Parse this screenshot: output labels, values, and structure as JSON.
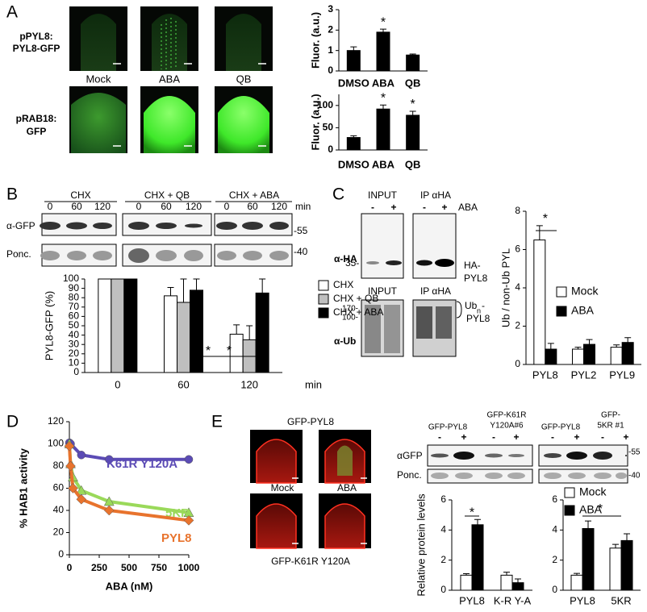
{
  "figure": {
    "panel_letters": [
      "A",
      "B",
      "C",
      "D",
      "E"
    ],
    "a": {
      "row_labels": [
        [
          "pPYL8:",
          "PYL8-GFP"
        ],
        [
          "pRAB18:",
          "GFP"
        ]
      ],
      "conditions": [
        "Mock",
        "ABA",
        "QB"
      ]
    },
    "b": {
      "groups": [
        "CHX",
        "CHX + QB",
        "CHX + ABA"
      ],
      "lanes": [
        "0",
        "60",
        "120",
        "0",
        "60",
        "120",
        "0",
        "60",
        "120"
      ],
      "unit": "min",
      "rows": [
        "α-GFP",
        "Ponc."
      ],
      "markers": [
        "-55",
        "-40"
      ]
    },
    "c": {
      "top_headers": [
        "INPUT",
        "IP αHA"
      ],
      "signs": [
        "-",
        "+",
        "-",
        "+"
      ],
      "treatment": "ABA",
      "antibody_ha": "α-HA",
      "marker_35": "35-",
      "ha_label": [
        "HA-",
        "PYL8"
      ],
      "bottom_headers": [
        "INPUT",
        "IP αHA"
      ],
      "markers_ub": [
        "170-",
        "100-"
      ],
      "ub_label": [
        "Ub",
        "n",
        "-",
        "PYL8"
      ],
      "antibody_ub": "α-Ub"
    },
    "e": {
      "image_top": "GFP-PYL8",
      "conditions": [
        "Mock",
        "ABA"
      ],
      "image_bottom": "GFP-K61R Y120A",
      "blot_headers": [
        [
          "GFP-PYL8"
        ],
        [
          "GFP-K61R",
          "Y120A#6"
        ],
        [
          "GFP-PYL8"
        ],
        [
          "GFP-",
          "5KR #1"
        ]
      ],
      "signs": [
        "-",
        "+",
        "-",
        "+",
        "-",
        "+",
        "-",
        "+"
      ],
      "rows": [
        "αGFP",
        "Ponc."
      ],
      "markers": [
        "-55",
        "-40"
      ]
    }
  },
  "chart_data": [
    {
      "type": "bar",
      "categories": [
        "DMSO",
        "ABA",
        "QB"
      ],
      "values": [
        1.0,
        1.9,
        0.78
      ],
      "errors": [
        0.18,
        0.15,
        0.05
      ],
      "color": "#000000",
      "ylim": [
        0,
        3
      ],
      "yticks": [
        0,
        1,
        2,
        3
      ],
      "y_label": "Fluor. (a.u.)",
      "annotations": [
        "*"
      ]
    },
    {
      "type": "bar",
      "categories": [
        "DMSO",
        "ABA",
        "QB"
      ],
      "values": [
        28,
        92,
        78
      ],
      "errors": [
        4,
        9,
        9
      ],
      "color": "#000000",
      "ylim": [
        0,
        125
      ],
      "yticks": [
        0,
        50,
        100
      ],
      "y_label": "Fluor. (a.u.)",
      "annotations": [
        "*",
        "*"
      ]
    },
    {
      "type": "bar",
      "categories": [
        "0",
        "60",
        "120"
      ],
      "series": [
        {
          "name": "CHX",
          "color": "#ffffff",
          "values": [
            100,
            82,
            41
          ],
          "errors": [
            0,
            9,
            10
          ]
        },
        {
          "name": "CHX + QB",
          "color": "#bfbfbf",
          "values": [
            100,
            75,
            35
          ],
          "errors": [
            0,
            25,
            15
          ]
        },
        {
          "name": "CHX + ABA",
          "color": "#000000",
          "values": [
            100,
            88,
            85
          ],
          "errors": [
            0,
            12,
            15
          ]
        }
      ],
      "ylim": [
        0,
        100
      ],
      "yticks": [
        0,
        10,
        20,
        30,
        40,
        50,
        60,
        70,
        80,
        90,
        100
      ],
      "y_label": "PYL8-GFP (%)",
      "x_label": "min",
      "annotations": [
        "*",
        "*"
      ]
    },
    {
      "type": "bar",
      "categories": [
        "PYL8",
        "PYL2",
        "PYL9"
      ],
      "series": [
        {
          "name": "Mock",
          "color": "#ffffff",
          "values": [
            6.5,
            0.8,
            0.9
          ],
          "errors": [
            0.75,
            0.1,
            0.12
          ]
        },
        {
          "name": "ABA",
          "color": "#000000",
          "values": [
            0.8,
            1.05,
            1.15
          ],
          "errors": [
            0.3,
            0.25,
            0.25
          ]
        }
      ],
      "ylim": [
        0,
        8
      ],
      "yticks": [
        0,
        2,
        4,
        6,
        8
      ],
      "y_label": "Ub / non-Ub PYL",
      "annotations": [
        "*"
      ]
    },
    {
      "type": "line",
      "series": [
        {
          "name": "K61R Y120A",
          "color": "#5b4bb5",
          "x": [
            0,
            10,
            100,
            333,
            1000
          ],
          "values": [
            101,
            100,
            90,
            86,
            86
          ]
        },
        {
          "name": "5KR",
          "color": "#9ad95a",
          "x": [
            0,
            10,
            30,
            100,
            333,
            1000
          ],
          "values": [
            100,
            82,
            70,
            58,
            48,
            38
          ]
        },
        {
          "name": "PYL8",
          "color": "#e8732d",
          "x": [
            0,
            10,
            30,
            100,
            333,
            1000
          ],
          "values": [
            98,
            80,
            60,
            50,
            40,
            31
          ]
        }
      ],
      "xlim": [
        0,
        1000
      ],
      "xticks": [
        0,
        250,
        500,
        750,
        1000
      ],
      "ylim": [
        0,
        120
      ],
      "yticks": [
        0,
        20,
        40,
        60,
        80,
        100,
        120
      ],
      "x_label": "ABA (nM)",
      "y_label": "% HAB1 activity"
    },
    {
      "type": "bar",
      "categories": [
        "PYL8",
        "K-R Y-A"
      ],
      "series": [
        {
          "color": "#ffffff",
          "values": [
            1.0,
            1.0
          ],
          "errors": [
            0.1,
            0.2
          ]
        },
        {
          "color": "#000000",
          "values": [
            4.35,
            0.5
          ],
          "errors": [
            0.35,
            0.25
          ]
        }
      ],
      "ylim": [
        0,
        6
      ],
      "yticks": [
        0,
        2,
        4,
        6
      ],
      "y_label": "Relative protein levels",
      "annotations": [
        "*"
      ]
    },
    {
      "type": "bar",
      "categories": [
        "PYL8",
        "5KR"
      ],
      "series": [
        {
          "name": "Mock",
          "color": "#ffffff",
          "values": [
            1.0,
            2.8
          ],
          "errors": [
            0.12,
            0.25
          ]
        },
        {
          "name": "ABA",
          "color": "#000000",
          "values": [
            4.1,
            3.3
          ],
          "errors": [
            0.5,
            0.45
          ]
        }
      ],
      "ylim": [
        0,
        6
      ],
      "yticks": [
        0,
        2,
        4,
        6
      ],
      "annotations": [
        "*"
      ]
    }
  ]
}
